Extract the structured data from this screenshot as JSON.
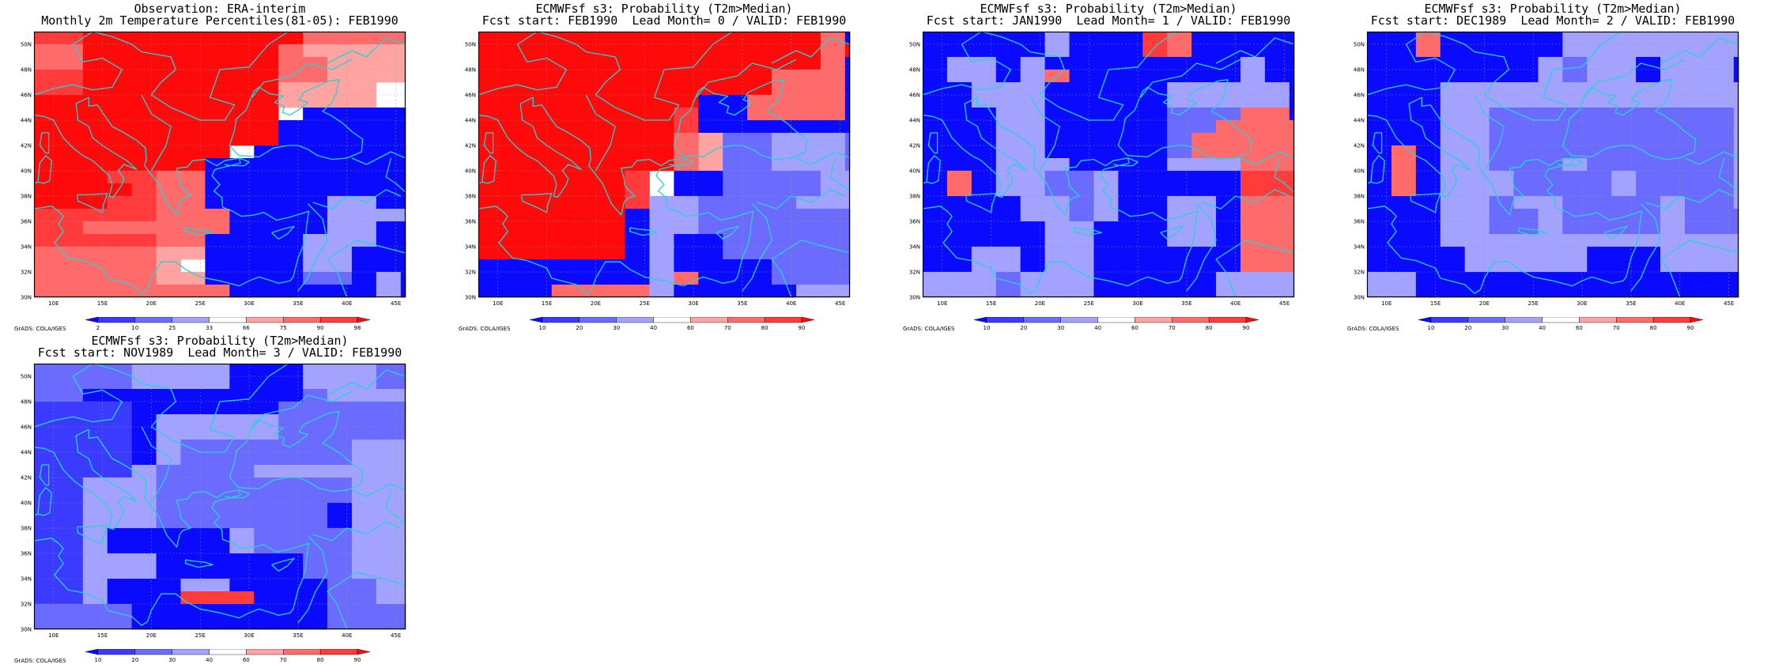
{
  "map_params": {
    "lon_min": 8,
    "lon_max": 46,
    "lat_min": 30,
    "lat_max": 51,
    "cell": 2.5
  },
  "lon_ticks": [
    10,
    15,
    20,
    25,
    30,
    35,
    40,
    45
  ],
  "lat_ticks": [
    30,
    32,
    34,
    36,
    38,
    40,
    42,
    44,
    46,
    48,
    50
  ],
  "lon_tick_labels": [
    "10E",
    "15E",
    "20E",
    "25E",
    "30E",
    "35E",
    "40E",
    "45E"
  ],
  "lat_tick_labels": [
    "30N",
    "32N",
    "34N",
    "36N",
    "38N",
    "40N",
    "42N",
    "44N",
    "46N",
    "48N",
    "50N"
  ],
  "credit_text": "GrADS: COLA/IGES",
  "coastline_color": "#26d3d3",
  "colorbars": {
    "percentile": {
      "labels": [
        "2",
        "10",
        "25",
        "33",
        "66",
        "75",
        "90",
        "98"
      ],
      "colors": [
        "#0a0aff",
        "#3b3bff",
        "#6b6bff",
        "#a3a3ff",
        "#ffffff",
        "#ffa3a3",
        "#ff6b6b",
        "#ff3b3b",
        "#ff0a0a"
      ]
    },
    "probability": {
      "labels": [
        "10",
        "20",
        "30",
        "40",
        "60",
        "70",
        "80",
        "90"
      ],
      "colors": [
        "#0a0aff",
        "#3b3bff",
        "#6b6bff",
        "#a3a3ff",
        "#ffffff",
        "#ffa3a3",
        "#ff6b6b",
        "#ff3b3b",
        "#ff0a0a"
      ]
    }
  },
  "panels": [
    {
      "title1": "Observation: ERA-interim",
      "title2": "Monthly 2m Temperature Percentiles(81-05): FEB1990",
      "colorbar": "percentile",
      "grid": [
        "7788888888866666",
        "6688888888655555",
        "6688888888665555",
        "7788888888665555",
        "7788888888555544",
        "8888888888555544",
        "8888888888400000",
        "8888888888000000",
        "8888888888000000",
        "8888888840000000",
        "8888888000000000",
        "8887766000000000",
        "8888766000000000",
        "8887766000003300",
        "7777766600003333",
        "7766666600003300",
        "7777766000033300",
        "6666655000033000",
        "6666654000033000",
        "6666655000022030",
        "6666666600000030"
      ]
    },
    {
      "title1": "ECMWFsf s3: Probability (T2m>Median)",
      "title2": "Fcst start: FEB1990  Lead Month= 0 / VALID: FEB1990",
      "colorbar": "probability",
      "grid": [
        "8888888888888860",
        "8888888888888868",
        "8888888888888860",
        "8888888888886660",
        "8888888888886660",
        "8888888880066660",
        "8888888870066660",
        "8888888870000000",
        "8888888865223332",
        "8888888865223332",
        "8888888865223332",
        "8888887400222233",
        "8888887400222233",
        "8888887332222333",
        "8888880332222222",
        "8888880332222222",
        "8888880300222222",
        "8888880300222222",
        "0000000300002222",
        "0000000360002222",
        "0006666300000333"
      ]
    },
    {
      "title1": "ECMWFsf s3: Probability (T2m>Median)",
      "title2": "Fcst start: JAN1990  Lead Month= 1 / VALID: FEB1990",
      "colorbar": "probability",
      "grid": [
        "0000030007600000",
        "0000030007600000",
        "0330300000000300",
        "0330360000000300",
        "0033300000333330",
        "0033300000333330",
        "0003300000222660",
        "0003300000226666",
        "0003300000266666",
        "0003300000266666",
        "0003330000333666",
        "0603322300000777",
        "0603322300000777",
        "0000332300330666",
        "0000332300330666",
        "0000033000330666",
        "0000033000330666",
        "0033033000000666",
        "0033033000000666",
        "3332333000003333",
        "3332333000003333"
      ]
    },
    {
      "title1": "ECMWFsf s3: Probability (T2m>Median)",
      "title2": "Fcst start: DEC1989  Lead Month= 2 / VALID: FEB1990",
      "colorbar": "probability",
      "grid": [
        "0060000033333333",
        "0060000033333333",
        "0000000323303330",
        "0000000323303330",
        "0003333333333333",
        "0003333333333333",
        "0003322222222223",
        "0003322222222223",
        "0003322222222223",
        "0603322222222223",
        "0603322232222223",
        "0603332222322223",
        "0603332222322223",
        "0003323322223223",
        "0003322322223222",
        "0003322322223222",
        "0003333333333333",
        "0000333330003333",
        "0000333330003333",
        "3300000000000000",
        "3300000000000000"
      ]
    },
    {
      "title1": "ECMWFsf s3: Probability (T2m>Median)",
      "title2": "Fcst start: NOV1989  Lead Month= 3 / VALID: FEB1990",
      "colorbar": "probability",
      "grid": [
        "2222333300033322",
        "2222333300033322",
        "2200000000023333",
        "1111000000222222",
        "1111033333222222",
        "1111033333222222",
        "1111032222222333",
        "1111032222222333",
        "1111322223333333",
        "1133322222222333",
        "1133322222222333",
        "1133322222220333",
        "1133322222220333",
        "1130000032222333",
        "1130000032222333",
        "1133300000022333",
        "1133300000022333",
        "1130003300002233",
        "1130007770002233",
        "2222000000002222",
        "2222000000002222"
      ]
    }
  ]
}
